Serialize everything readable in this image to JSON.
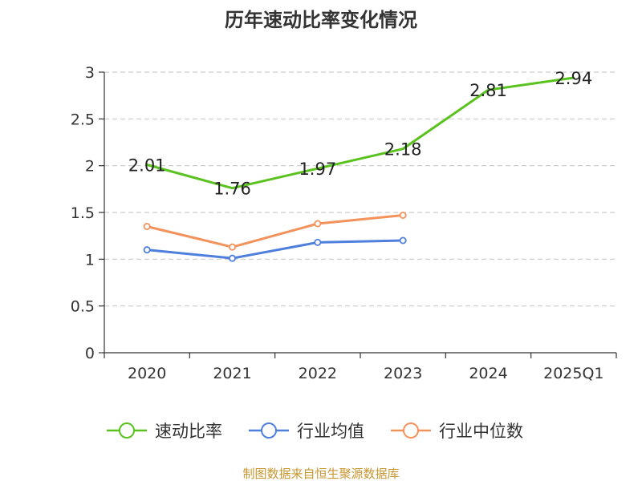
{
  "chart_data": {
    "type": "line",
    "title": "历年速动比率变化情况",
    "categories": [
      "2020",
      "2021",
      "2022",
      "2023",
      "2024",
      "2025Q1"
    ],
    "y_ticks": [
      "0",
      "0.5",
      "1",
      "1.5",
      "2",
      "2.5",
      "3"
    ],
    "ylim": [
      0,
      3
    ],
    "grid": true,
    "legend_position": "bottom",
    "series": [
      {
        "name": "速动比率",
        "color": "#5ac21f",
        "markers": false,
        "values": [
          2.01,
          1.76,
          1.97,
          2.18,
          2.81,
          2.94
        ],
        "labels": [
          "2.01",
          "1.76",
          "1.97",
          "2.18",
          "2.81",
          "2.94"
        ]
      },
      {
        "name": "行业均值",
        "color": "#4f7fdc",
        "markers": true,
        "values": [
          1.1,
          1.01,
          1.18,
          1.2,
          null,
          null
        ]
      },
      {
        "name": "行业中位数",
        "color": "#f3925b",
        "markers": true,
        "values": [
          1.35,
          1.13,
          1.38,
          1.47,
          null,
          null
        ]
      }
    ],
    "source": "制图数据来自恒生聚源数据库"
  }
}
